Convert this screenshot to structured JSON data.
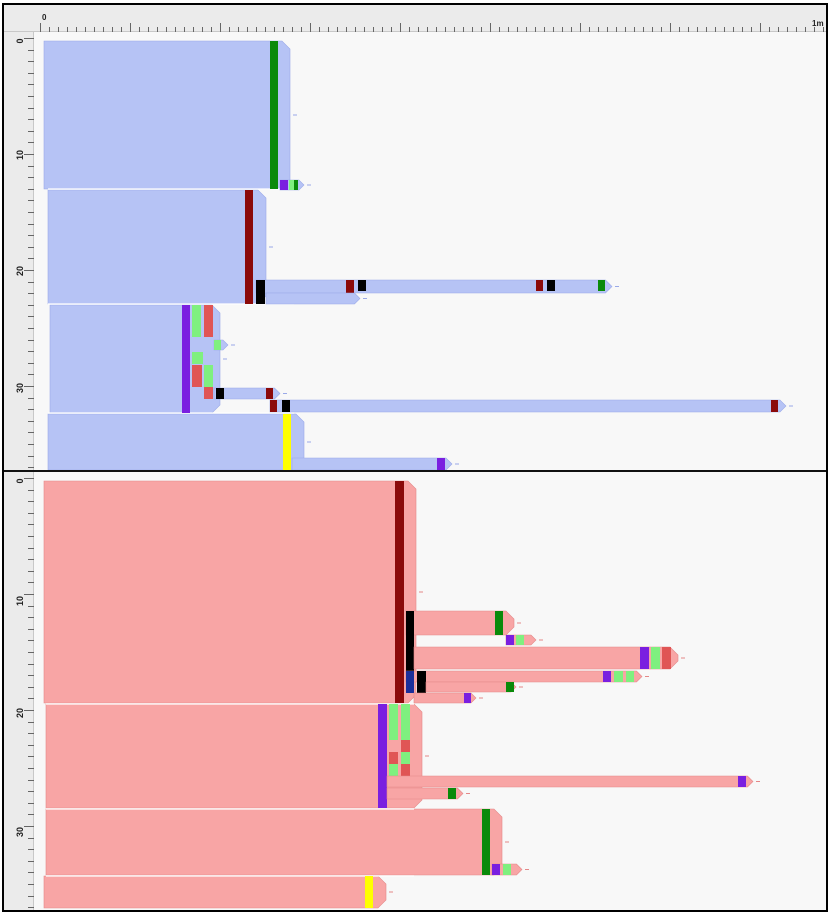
{
  "ruler": {
    "start_label": "0",
    "end_label": "1m"
  },
  "top_panel": {
    "color": "#b6c3f5",
    "edge_color": "#9aa9e8",
    "axis_labels": [
      "0",
      "10",
      "20",
      "30"
    ]
  },
  "bottom_panel": {
    "color": "#f8a5a5",
    "edge_color": "#e48888",
    "axis_labels": [
      "0",
      "10",
      "20",
      "30"
    ]
  },
  "marker_colors": {
    "green": "#0a8a0a",
    "dark-red": "#8b0a0a",
    "black": "#000000",
    "purple": "#7a1fe0",
    "light-green": "#7ff07f",
    "red": "#e05555",
    "yellow": "#ffff00",
    "navy": "#1c2f9a"
  }
}
